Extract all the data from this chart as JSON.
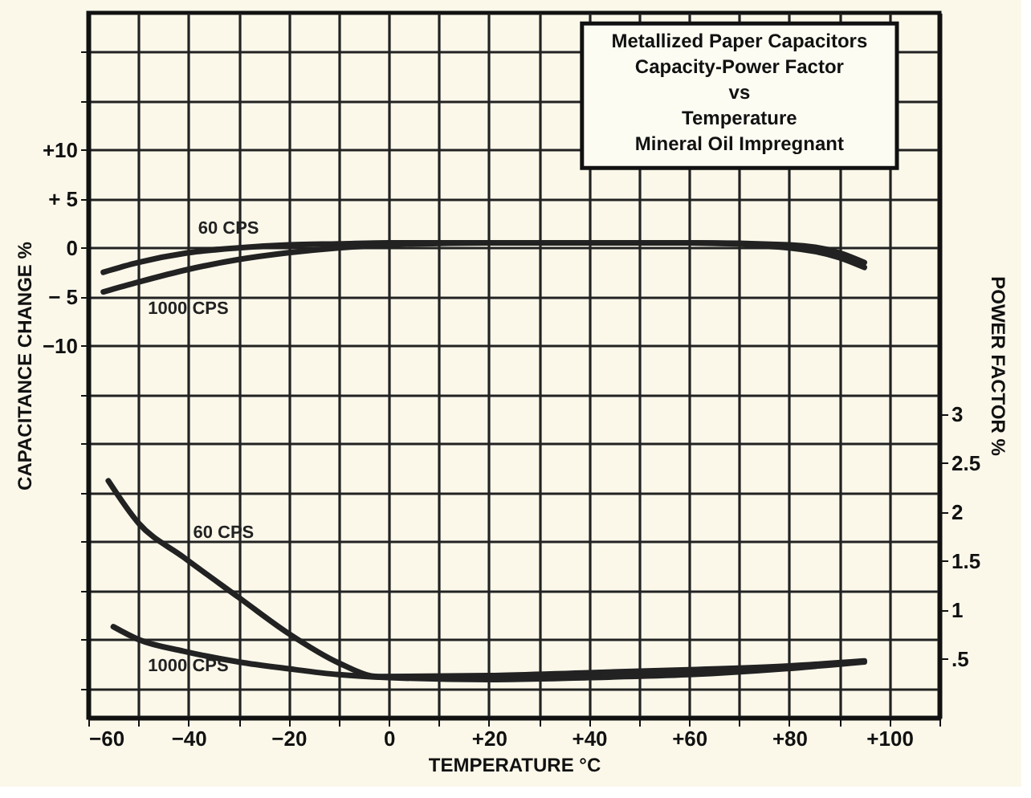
{
  "chart_data": {
    "type": "line",
    "title": "Metallized Paper Capacitors\nCapacity-Power Factor\nvs\nTemperature\nMineral Oil Impregnant",
    "xlabel": "TEMPERATURE °C",
    "ylabel": "CAPACITANCE CHANGE %",
    "y2label": "POWER FACTOR %",
    "xlim": [
      -60,
      110
    ],
    "xticks": [
      {
        "value": -60,
        "label": "−60"
      },
      {
        "value": -50,
        "label": null
      },
      {
        "value": -40,
        "label": "−40"
      },
      {
        "value": -30,
        "label": null
      },
      {
        "value": -20,
        "label": "−20"
      },
      {
        "value": -10,
        "label": null
      },
      0,
      {
        "value": 10,
        "label": null
      },
      {
        "value": 20,
        "label": "+20"
      },
      {
        "value": 30,
        "label": null
      },
      {
        "value": 40,
        "label": "+40"
      },
      {
        "value": 50,
        "label": null
      },
      {
        "value": 60,
        "label": "+60"
      },
      {
        "value": 70,
        "label": null
      },
      {
        "value": 80,
        "label": "+80"
      },
      {
        "value": 90,
        "label": null
      },
      {
        "value": 100,
        "label": "+100"
      },
      {
        "value": 110,
        "label": null
      }
    ],
    "ylim": [
      -48,
      24
    ],
    "yticks": [
      {
        "value": -45,
        "label": null
      },
      {
        "value": -40,
        "label": null
      },
      {
        "value": -35,
        "label": null
      },
      {
        "value": -30,
        "label": null
      },
      {
        "value": -25,
        "label": null
      },
      {
        "value": -20,
        "label": null
      },
      {
        "value": -15,
        "label": null
      },
      {
        "value": -10,
        "label": "−10"
      },
      {
        "value": -5,
        "label": "− 5"
      },
      0,
      {
        "value": 5,
        "label": "+ 5"
      },
      {
        "value": 10,
        "label": "+10"
      },
      {
        "value": 15,
        "label": null
      },
      {
        "value": 20,
        "label": null
      }
    ],
    "y2lim": [
      -0.1,
      7.1
    ],
    "y2ticks": [
      {
        "value": 0.5,
        "label": ".5"
      },
      1,
      1.5,
      2,
      2.5,
      3
    ],
    "grid": true,
    "series": [
      {
        "name": "60 CPS",
        "color": "#222222",
        "x": [
          -57,
          -50,
          -40,
          -30,
          -20,
          -10,
          0,
          20,
          40,
          60,
          80,
          90,
          95
        ],
        "values": [
          -2.5,
          -1.5,
          -0.5,
          0,
          0.3,
          0.4,
          0.5,
          0.5,
          0.5,
          0.5,
          0.3,
          -0.5,
          -1.5
        ]
      },
      {
        "name": "1000 CPS",
        "color": "#222222",
        "x": [
          -57,
          -50,
          -40,
          -30,
          -20,
          -10,
          0,
          20,
          40,
          60,
          80,
          90,
          95
        ],
        "values": [
          -4.5,
          -3.5,
          -2.2,
          -1.2,
          -0.5,
          0,
          0.3,
          0.5,
          0.5,
          0.5,
          0,
          -1,
          -2
        ]
      },
      {
        "name": "60 CPS",
        "color": "#222222",
        "axis": "y2",
        "x": [
          -56,
          -50,
          -41,
          -30,
          -20,
          -10,
          -2,
          20,
          40,
          60,
          80,
          95
        ],
        "values": [
          2.32,
          1.89,
          1.54,
          1.13,
          0.76,
          0.46,
          0.32,
          0.33,
          0.36,
          0.39,
          0.43,
          0.48
        ]
      },
      {
        "name": "1000 CPS",
        "color": "#222222",
        "axis": "y2",
        "x": [
          -55,
          -50,
          -41,
          -30,
          -20,
          -10,
          0,
          20,
          40,
          60,
          79,
          95
        ],
        "values": [
          0.83,
          0.7,
          0.58,
          0.47,
          0.4,
          0.34,
          0.31,
          0.29,
          0.31,
          0.34,
          0.4,
          0.47
        ]
      }
    ]
  }
}
